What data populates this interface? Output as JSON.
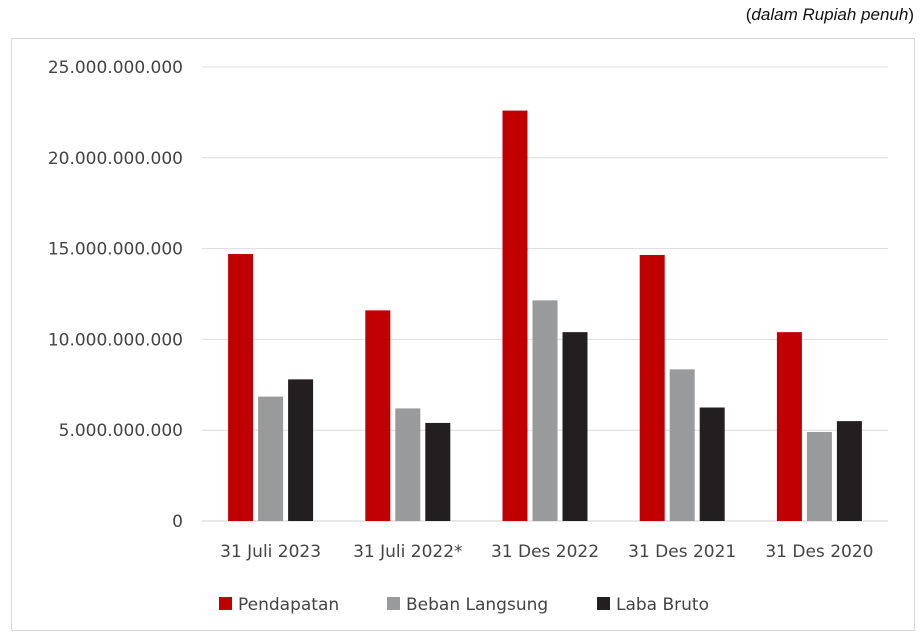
{
  "unit_note": {
    "open": "(",
    "italic": "dalam Rupiah penuh",
    "close": ")"
  },
  "chart_data": {
    "type": "bar",
    "categories": [
      "31 Juli 2023",
      "31 Juli 2022*",
      "31 Des 2022",
      "31 Des 2021",
      "31 Des 2020"
    ],
    "series": [
      {
        "name": "Pendapatan",
        "color": "#c00000",
        "values": [
          14700000000,
          11600000000,
          22600000000,
          14650000000,
          10400000000
        ]
      },
      {
        "name": "Beban Langsung",
        "color": "#999a9c",
        "values": [
          6850000000,
          6200000000,
          12150000000,
          8350000000,
          4900000000
        ]
      },
      {
        "name": "Laba Bruto",
        "color": "#231f20",
        "values": [
          7800000000,
          5400000000,
          10400000000,
          6250000000,
          5500000000
        ]
      }
    ],
    "yticks": [
      "0",
      "5.000.000.000",
      "10.000.000.000",
      "15.000.000.000",
      "20.000.000.000",
      "25.000.000.000"
    ],
    "ylim": [
      0,
      25000000000
    ],
    "grid": true,
    "legend_position": "bottom"
  }
}
